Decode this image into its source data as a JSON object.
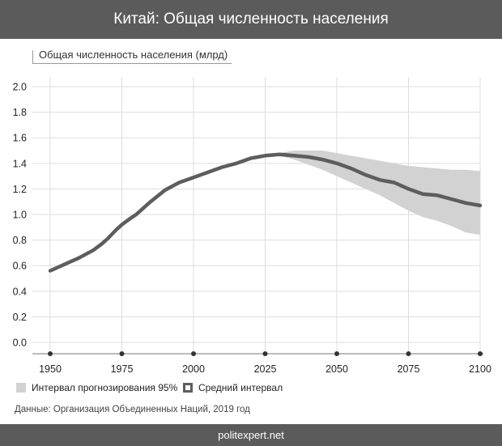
{
  "header": {
    "title": "Китай: Общая численность населения"
  },
  "footer": {
    "site": "politexpert.net"
  },
  "source": "Данные: Организация Объединенных Наций, 2019 год",
  "legend": {
    "interval_label": "Интервал прогнозирования 95%",
    "median_label": "Средний интервал"
  },
  "colors": {
    "band": "#d2d2d2",
    "line": "#5d5d5d",
    "grid": "#dddddd",
    "header_bg": "#5b5b5b"
  },
  "chart_data": {
    "type": "line",
    "title": "Китай: Общая численность населения",
    "ylabel": "Общая численность населения (млрд)",
    "xlabel": "",
    "xlim": [
      1950,
      2100
    ],
    "ylim": [
      0,
      2.0
    ],
    "x_ticks": [
      "1950",
      "1975",
      "2000",
      "2025",
      "2050",
      "2075",
      "2100"
    ],
    "y_ticks": [
      "2.0",
      "1.8",
      "1.6",
      "1.4",
      "1.2",
      "1.0",
      "0.8",
      "0.6",
      "0.4",
      "0.2",
      "0.0"
    ],
    "grid": true,
    "series": [
      {
        "name": "Средний интервал",
        "x": [
          1950,
          1955,
          1960,
          1965,
          1968,
          1970,
          1973,
          1975,
          1978,
          1980,
          1985,
          1990,
          1995,
          2000,
          2005,
          2010,
          2015,
          2020,
          2025,
          2030,
          2035,
          2040,
          2045,
          2050,
          2055,
          2060,
          2065,
          2070,
          2075,
          2080,
          2085,
          2090,
          2095,
          2100
        ],
        "values": [
          0.56,
          0.61,
          0.66,
          0.72,
          0.77,
          0.81,
          0.88,
          0.92,
          0.97,
          1.0,
          1.1,
          1.19,
          1.25,
          1.29,
          1.33,
          1.37,
          1.4,
          1.44,
          1.46,
          1.47,
          1.46,
          1.45,
          1.43,
          1.4,
          1.36,
          1.31,
          1.27,
          1.25,
          1.2,
          1.16,
          1.15,
          1.12,
          1.09,
          1.07
        ]
      }
    ],
    "interval_95": {
      "name": "Интервал прогнозирования 95%",
      "x": [
        2025,
        2030,
        2035,
        2040,
        2045,
        2050,
        2055,
        2060,
        2065,
        2070,
        2075,
        2080,
        2085,
        2090,
        2095,
        2100
      ],
      "lower": [
        1.46,
        1.46,
        1.43,
        1.39,
        1.35,
        1.3,
        1.25,
        1.2,
        1.15,
        1.09,
        1.03,
        0.98,
        0.95,
        0.91,
        0.86,
        0.84
      ],
      "upper": [
        1.46,
        1.48,
        1.5,
        1.5,
        1.5,
        1.48,
        1.46,
        1.44,
        1.42,
        1.4,
        1.38,
        1.37,
        1.36,
        1.35,
        1.35,
        1.34
      ]
    }
  }
}
